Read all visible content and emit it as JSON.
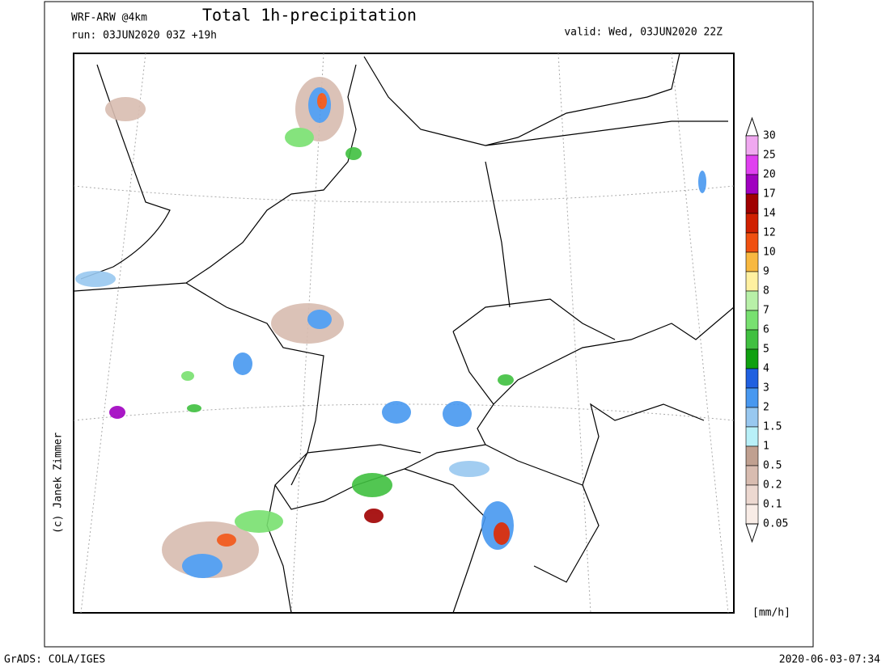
{
  "header": {
    "model": "WRF-ARW @4km",
    "title": "Total 1h-precipitation",
    "run": "run: 03JUN2020 03Z +19h",
    "valid": "valid: Wed, 03JUN2020 22Z"
  },
  "credit": "(c) Janek Zimmer",
  "legend": {
    "unit": "[mm/h]",
    "labels": [
      "30",
      "25",
      "20",
      "17",
      "14",
      "12",
      "10",
      "9",
      "8",
      "7",
      "6",
      "5",
      "4",
      "3",
      "2",
      "1.5",
      "1",
      "0.5",
      "0.2",
      "0.1",
      "0.05"
    ],
    "colors": [
      "#f0a8f0",
      "#e040f0",
      "#a000c0",
      "#a00000",
      "#d02000",
      "#f05010",
      "#f8b840",
      "#fff0a0",
      "#b8f0a8",
      "#78e070",
      "#40c040",
      "#10a010",
      "#2060e0",
      "#4898f0",
      "#98c8f0",
      "#b8f0f8",
      "#c0a090",
      "#d8bcb0",
      "#ecd8d0",
      "#f8ece6"
    ]
  },
  "footer": {
    "left": "GrADS: COLA/IGES",
    "right": "2020-06-03-07:34"
  }
}
